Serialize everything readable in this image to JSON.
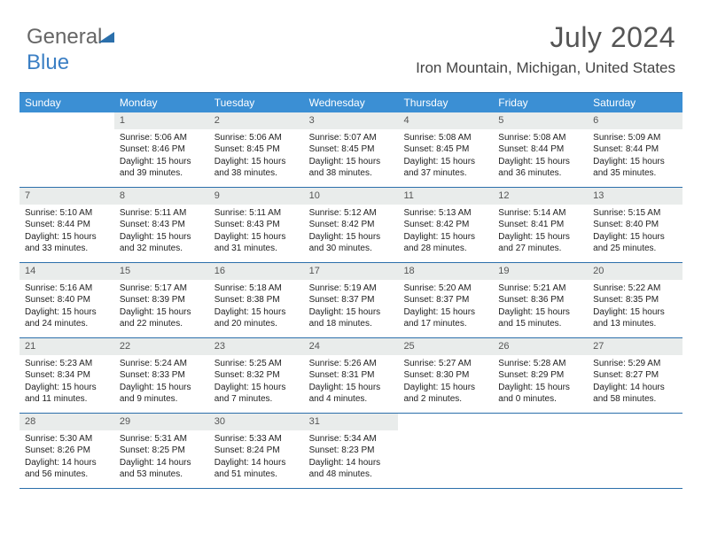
{
  "logo": {
    "part1": "General",
    "part2": "Blue"
  },
  "title": "July 2024",
  "location": "Iron Mountain, Michigan, United States",
  "header_bg": "#3b8fd4",
  "border_color": "#2b6fab",
  "daynum_bg": "#e9eceb",
  "headers": [
    "Sunday",
    "Monday",
    "Tuesday",
    "Wednesday",
    "Thursday",
    "Friday",
    "Saturday"
  ],
  "weeks": [
    [
      {
        "n": "",
        "lines": []
      },
      {
        "n": "1",
        "lines": [
          "Sunrise: 5:06 AM",
          "Sunset: 8:46 PM",
          "Daylight: 15 hours and 39 minutes."
        ]
      },
      {
        "n": "2",
        "lines": [
          "Sunrise: 5:06 AM",
          "Sunset: 8:45 PM",
          "Daylight: 15 hours and 38 minutes."
        ]
      },
      {
        "n": "3",
        "lines": [
          "Sunrise: 5:07 AM",
          "Sunset: 8:45 PM",
          "Daylight: 15 hours and 38 minutes."
        ]
      },
      {
        "n": "4",
        "lines": [
          "Sunrise: 5:08 AM",
          "Sunset: 8:45 PM",
          "Daylight: 15 hours and 37 minutes."
        ]
      },
      {
        "n": "5",
        "lines": [
          "Sunrise: 5:08 AM",
          "Sunset: 8:44 PM",
          "Daylight: 15 hours and 36 minutes."
        ]
      },
      {
        "n": "6",
        "lines": [
          "Sunrise: 5:09 AM",
          "Sunset: 8:44 PM",
          "Daylight: 15 hours and 35 minutes."
        ]
      }
    ],
    [
      {
        "n": "7",
        "lines": [
          "Sunrise: 5:10 AM",
          "Sunset: 8:44 PM",
          "Daylight: 15 hours and 33 minutes."
        ]
      },
      {
        "n": "8",
        "lines": [
          "Sunrise: 5:11 AM",
          "Sunset: 8:43 PM",
          "Daylight: 15 hours and 32 minutes."
        ]
      },
      {
        "n": "9",
        "lines": [
          "Sunrise: 5:11 AM",
          "Sunset: 8:43 PM",
          "Daylight: 15 hours and 31 minutes."
        ]
      },
      {
        "n": "10",
        "lines": [
          "Sunrise: 5:12 AM",
          "Sunset: 8:42 PM",
          "Daylight: 15 hours and 30 minutes."
        ]
      },
      {
        "n": "11",
        "lines": [
          "Sunrise: 5:13 AM",
          "Sunset: 8:42 PM",
          "Daylight: 15 hours and 28 minutes."
        ]
      },
      {
        "n": "12",
        "lines": [
          "Sunrise: 5:14 AM",
          "Sunset: 8:41 PM",
          "Daylight: 15 hours and 27 minutes."
        ]
      },
      {
        "n": "13",
        "lines": [
          "Sunrise: 5:15 AM",
          "Sunset: 8:40 PM",
          "Daylight: 15 hours and 25 minutes."
        ]
      }
    ],
    [
      {
        "n": "14",
        "lines": [
          "Sunrise: 5:16 AM",
          "Sunset: 8:40 PM",
          "Daylight: 15 hours and 24 minutes."
        ]
      },
      {
        "n": "15",
        "lines": [
          "Sunrise: 5:17 AM",
          "Sunset: 8:39 PM",
          "Daylight: 15 hours and 22 minutes."
        ]
      },
      {
        "n": "16",
        "lines": [
          "Sunrise: 5:18 AM",
          "Sunset: 8:38 PM",
          "Daylight: 15 hours and 20 minutes."
        ]
      },
      {
        "n": "17",
        "lines": [
          "Sunrise: 5:19 AM",
          "Sunset: 8:37 PM",
          "Daylight: 15 hours and 18 minutes."
        ]
      },
      {
        "n": "18",
        "lines": [
          "Sunrise: 5:20 AM",
          "Sunset: 8:37 PM",
          "Daylight: 15 hours and 17 minutes."
        ]
      },
      {
        "n": "19",
        "lines": [
          "Sunrise: 5:21 AM",
          "Sunset: 8:36 PM",
          "Daylight: 15 hours and 15 minutes."
        ]
      },
      {
        "n": "20",
        "lines": [
          "Sunrise: 5:22 AM",
          "Sunset: 8:35 PM",
          "Daylight: 15 hours and 13 minutes."
        ]
      }
    ],
    [
      {
        "n": "21",
        "lines": [
          "Sunrise: 5:23 AM",
          "Sunset: 8:34 PM",
          "Daylight: 15 hours and 11 minutes."
        ]
      },
      {
        "n": "22",
        "lines": [
          "Sunrise: 5:24 AM",
          "Sunset: 8:33 PM",
          "Daylight: 15 hours and 9 minutes."
        ]
      },
      {
        "n": "23",
        "lines": [
          "Sunrise: 5:25 AM",
          "Sunset: 8:32 PM",
          "Daylight: 15 hours and 7 minutes."
        ]
      },
      {
        "n": "24",
        "lines": [
          "Sunrise: 5:26 AM",
          "Sunset: 8:31 PM",
          "Daylight: 15 hours and 4 minutes."
        ]
      },
      {
        "n": "25",
        "lines": [
          "Sunrise: 5:27 AM",
          "Sunset: 8:30 PM",
          "Daylight: 15 hours and 2 minutes."
        ]
      },
      {
        "n": "26",
        "lines": [
          "Sunrise: 5:28 AM",
          "Sunset: 8:29 PM",
          "Daylight: 15 hours and 0 minutes."
        ]
      },
      {
        "n": "27",
        "lines": [
          "Sunrise: 5:29 AM",
          "Sunset: 8:27 PM",
          "Daylight: 14 hours and 58 minutes."
        ]
      }
    ],
    [
      {
        "n": "28",
        "lines": [
          "Sunrise: 5:30 AM",
          "Sunset: 8:26 PM",
          "Daylight: 14 hours and 56 minutes."
        ]
      },
      {
        "n": "29",
        "lines": [
          "Sunrise: 5:31 AM",
          "Sunset: 8:25 PM",
          "Daylight: 14 hours and 53 minutes."
        ]
      },
      {
        "n": "30",
        "lines": [
          "Sunrise: 5:33 AM",
          "Sunset: 8:24 PM",
          "Daylight: 14 hours and 51 minutes."
        ]
      },
      {
        "n": "31",
        "lines": [
          "Sunrise: 5:34 AM",
          "Sunset: 8:23 PM",
          "Daylight: 14 hours and 48 minutes."
        ]
      },
      {
        "n": "",
        "lines": []
      },
      {
        "n": "",
        "lines": []
      },
      {
        "n": "",
        "lines": []
      }
    ]
  ]
}
